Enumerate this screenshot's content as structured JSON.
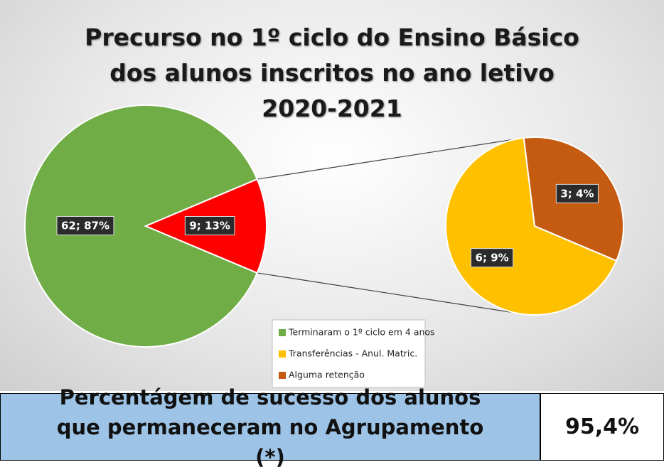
{
  "chart_data": {
    "type": "pie_of_pie",
    "title": "Precurso no 1º ciclo do Ensino Básico dos alunos inscritos no ano letivo 2020-2021",
    "categories": [
      "Terminaram o 1º ciclo em 4 anos",
      "Transferências - Anul. Matric.",
      "Alguma retenção"
    ],
    "values": [
      62,
      6,
      3
    ],
    "value_labels": [
      "62; 87%",
      "6; 9%",
      "3; 4%"
    ],
    "colors": [
      "#70ad47",
      "#ffc000",
      "#c55a11"
    ],
    "other": {
      "value": 9,
      "value_label": "9; 13%",
      "color": "#ff0000"
    },
    "legend": "bottom"
  },
  "summary": {
    "label": "Percentágem de sucesso dos alunos que permaneceram no Agrupamento (*)",
    "value": "95,4%"
  }
}
